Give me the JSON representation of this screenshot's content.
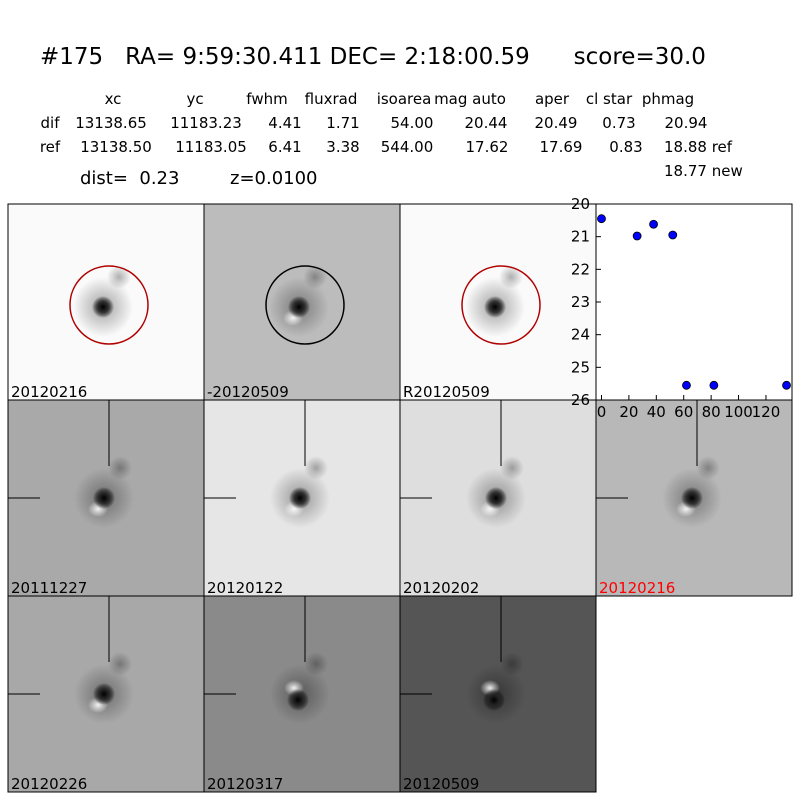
{
  "header": {
    "title": "#175   RA= 9:59:30.411 DEC= 2:18:00.59      score=30.0"
  },
  "table": {
    "columns": [
      "xc",
      "yc",
      "fwhm",
      "fluxrad",
      "isoarea",
      "mag auto",
      "aper",
      "cl star",
      "phmag"
    ],
    "rows": [
      [
        "dif",
        "13138.65",
        "11183.23",
        "4.41",
        "1.71",
        "54.00",
        "20.44",
        "20.49",
        "0.73",
        "20.94"
      ],
      [
        "ref",
        "13138.50",
        "11183.05",
        "6.41",
        "3.38",
        "544.00",
        "17.62",
        "17.69",
        "0.83",
        "18.88 ref"
      ]
    ],
    "extra": "18.77 new"
  },
  "dist": "dist=  0.23",
  "z": "z=0.0100",
  "panels": [
    {
      "label": "20120216",
      "background": "#fafafa",
      "circle": "#b00000"
    },
    {
      "label": "-20120509",
      "background": "#bcbcbc",
      "circle": "#000000"
    },
    {
      "label": "R20120509",
      "background": "#fafafa",
      "circle": "#b00000"
    },
    {
      "label": "20111227",
      "background": "#a9a9a9"
    },
    {
      "label": "20120122",
      "background": "#e6e6e6"
    },
    {
      "label": "20120202",
      "background": "#dedede"
    },
    {
      "label": "20120216",
      "background": "#b8b8b8",
      "label_color": "#ff0000"
    },
    {
      "label": "20120226",
      "background": "#a8a8a8"
    },
    {
      "label": "20120317",
      "background": "#8a8a8a"
    },
    {
      "label": "20120509",
      "background": "#555555"
    }
  ],
  "chart_data": {
    "type": "scatter",
    "x": [
      0,
      26,
      38,
      52,
      62,
      82,
      135
    ],
    "values": [
      20.45,
      20.98,
      20.62,
      20.95,
      25.55,
      25.55,
      25.55
    ],
    "color": "#0000ff",
    "xlim": [
      -4,
      139
    ],
    "ylim": [
      20,
      26
    ],
    "y_inverted": true,
    "xticks": [
      0,
      20,
      40,
      60,
      80,
      100,
      120
    ],
    "yticks": [
      20,
      21,
      22,
      23,
      24,
      25,
      26
    ]
  }
}
